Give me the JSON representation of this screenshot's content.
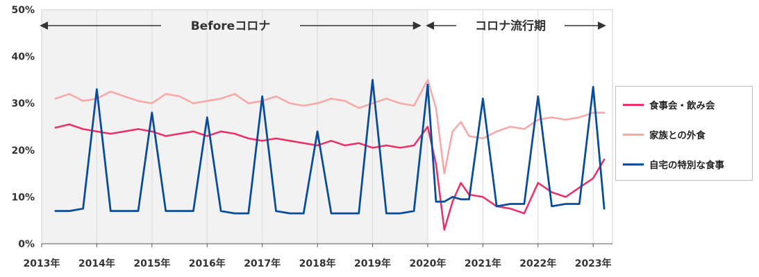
{
  "chart_data": {
    "type": "line",
    "title": "",
    "xlabel": "",
    "ylabel": "",
    "ylim": [
      0,
      50
    ],
    "y_ticks": [
      "0%",
      "10%",
      "20%",
      "30%",
      "40%",
      "50%"
    ],
    "x_ticks": [
      "2013年",
      "2014年",
      "2015年",
      "2016年",
      "2017年",
      "2018年",
      "2019年",
      "2020年",
      "2021年",
      "2022年",
      "2023年"
    ],
    "xlim": [
      2013.0,
      2023.35
    ],
    "grid": "vertical-yearly",
    "legend": "right",
    "periods": [
      {
        "label": "Beforeコロナ",
        "start": 2013.0,
        "end": 2020.0,
        "background": "#f2f2f2"
      },
      {
        "label": "コロナ流行期",
        "start": 2020.0,
        "end": 2023.35,
        "background": "#ffffff"
      }
    ],
    "series": [
      {
        "name": "食事会・飲み会",
        "color": "#e8336a",
        "x": [
          2013.25,
          2013.5,
          2013.75,
          2014.0,
          2014.25,
          2014.5,
          2014.75,
          2015.0,
          2015.25,
          2015.5,
          2015.75,
          2016.0,
          2016.25,
          2016.5,
          2016.75,
          2017.0,
          2017.25,
          2017.5,
          2017.75,
          2018.0,
          2018.25,
          2018.5,
          2018.75,
          2019.0,
          2019.25,
          2019.5,
          2019.75,
          2020.0,
          2020.15,
          2020.3,
          2020.45,
          2020.6,
          2020.75,
          2021.0,
          2021.25,
          2021.5,
          2021.75,
          2022.0,
          2022.25,
          2022.5,
          2022.75,
          2023.0,
          2023.2
        ],
        "values": [
          24.8,
          25.5,
          24.5,
          24.0,
          23.5,
          24.0,
          24.5,
          24.0,
          23.0,
          23.5,
          24.0,
          23.0,
          24.0,
          23.5,
          22.5,
          22.0,
          22.5,
          22.0,
          21.5,
          21.0,
          22.0,
          21.0,
          21.5,
          20.5,
          21.0,
          20.5,
          21.0,
          25.0,
          17.0,
          3.0,
          9.0,
          13.0,
          10.5,
          10.0,
          8.0,
          7.5,
          6.5,
          13.0,
          11.0,
          10.0,
          12.0,
          14.0,
          18.0
        ]
      },
      {
        "name": "家族との外食",
        "color": "#f7a9a8",
        "x": [
          2013.25,
          2013.5,
          2013.75,
          2014.0,
          2014.25,
          2014.5,
          2014.75,
          2015.0,
          2015.25,
          2015.5,
          2015.75,
          2016.0,
          2016.25,
          2016.5,
          2016.75,
          2017.0,
          2017.25,
          2017.5,
          2017.75,
          2018.0,
          2018.25,
          2018.5,
          2018.75,
          2019.0,
          2019.25,
          2019.5,
          2019.75,
          2020.0,
          2020.15,
          2020.3,
          2020.45,
          2020.6,
          2020.75,
          2021.0,
          2021.25,
          2021.5,
          2021.75,
          2022.0,
          2022.25,
          2022.5,
          2022.75,
          2023.0,
          2023.2
        ],
        "values": [
          31.0,
          32.0,
          30.5,
          31.0,
          32.5,
          31.5,
          30.5,
          30.0,
          32.0,
          31.5,
          30.0,
          30.5,
          31.0,
          32.0,
          30.0,
          30.5,
          31.5,
          30.0,
          29.5,
          30.0,
          31.0,
          30.5,
          29.0,
          30.0,
          31.0,
          30.0,
          29.5,
          35.0,
          29.0,
          15.0,
          24.0,
          26.0,
          23.0,
          22.5,
          24.0,
          25.0,
          24.5,
          26.5,
          27.0,
          26.5,
          27.0,
          28.0,
          28.0
        ]
      },
      {
        "name": "自宅の特別な食事",
        "color": "#0a4c9c",
        "x": [
          2013.25,
          2013.5,
          2013.75,
          2014.0,
          2014.25,
          2014.5,
          2014.75,
          2015.0,
          2015.25,
          2015.5,
          2015.75,
          2016.0,
          2016.25,
          2016.5,
          2016.75,
          2017.0,
          2017.25,
          2017.5,
          2017.75,
          2018.0,
          2018.25,
          2018.5,
          2018.75,
          2019.0,
          2019.25,
          2019.5,
          2019.75,
          2020.0,
          2020.15,
          2020.3,
          2020.45,
          2020.6,
          2020.75,
          2021.0,
          2021.25,
          2021.5,
          2021.75,
          2022.0,
          2022.25,
          2022.5,
          2022.75,
          2023.0,
          2023.2
        ],
        "values": [
          7.0,
          7.0,
          7.5,
          33.0,
          7.0,
          7.0,
          7.0,
          28.0,
          7.0,
          7.0,
          7.0,
          27.0,
          7.0,
          6.5,
          6.5,
          31.5,
          7.0,
          6.5,
          6.5,
          24.0,
          6.5,
          6.5,
          6.5,
          35.0,
          6.5,
          6.5,
          7.0,
          34.0,
          9.0,
          9.0,
          10.0,
          9.5,
          9.5,
          31.0,
          8.0,
          8.5,
          8.5,
          31.5,
          8.0,
          8.5,
          8.5,
          33.5,
          7.5
        ]
      }
    ]
  }
}
